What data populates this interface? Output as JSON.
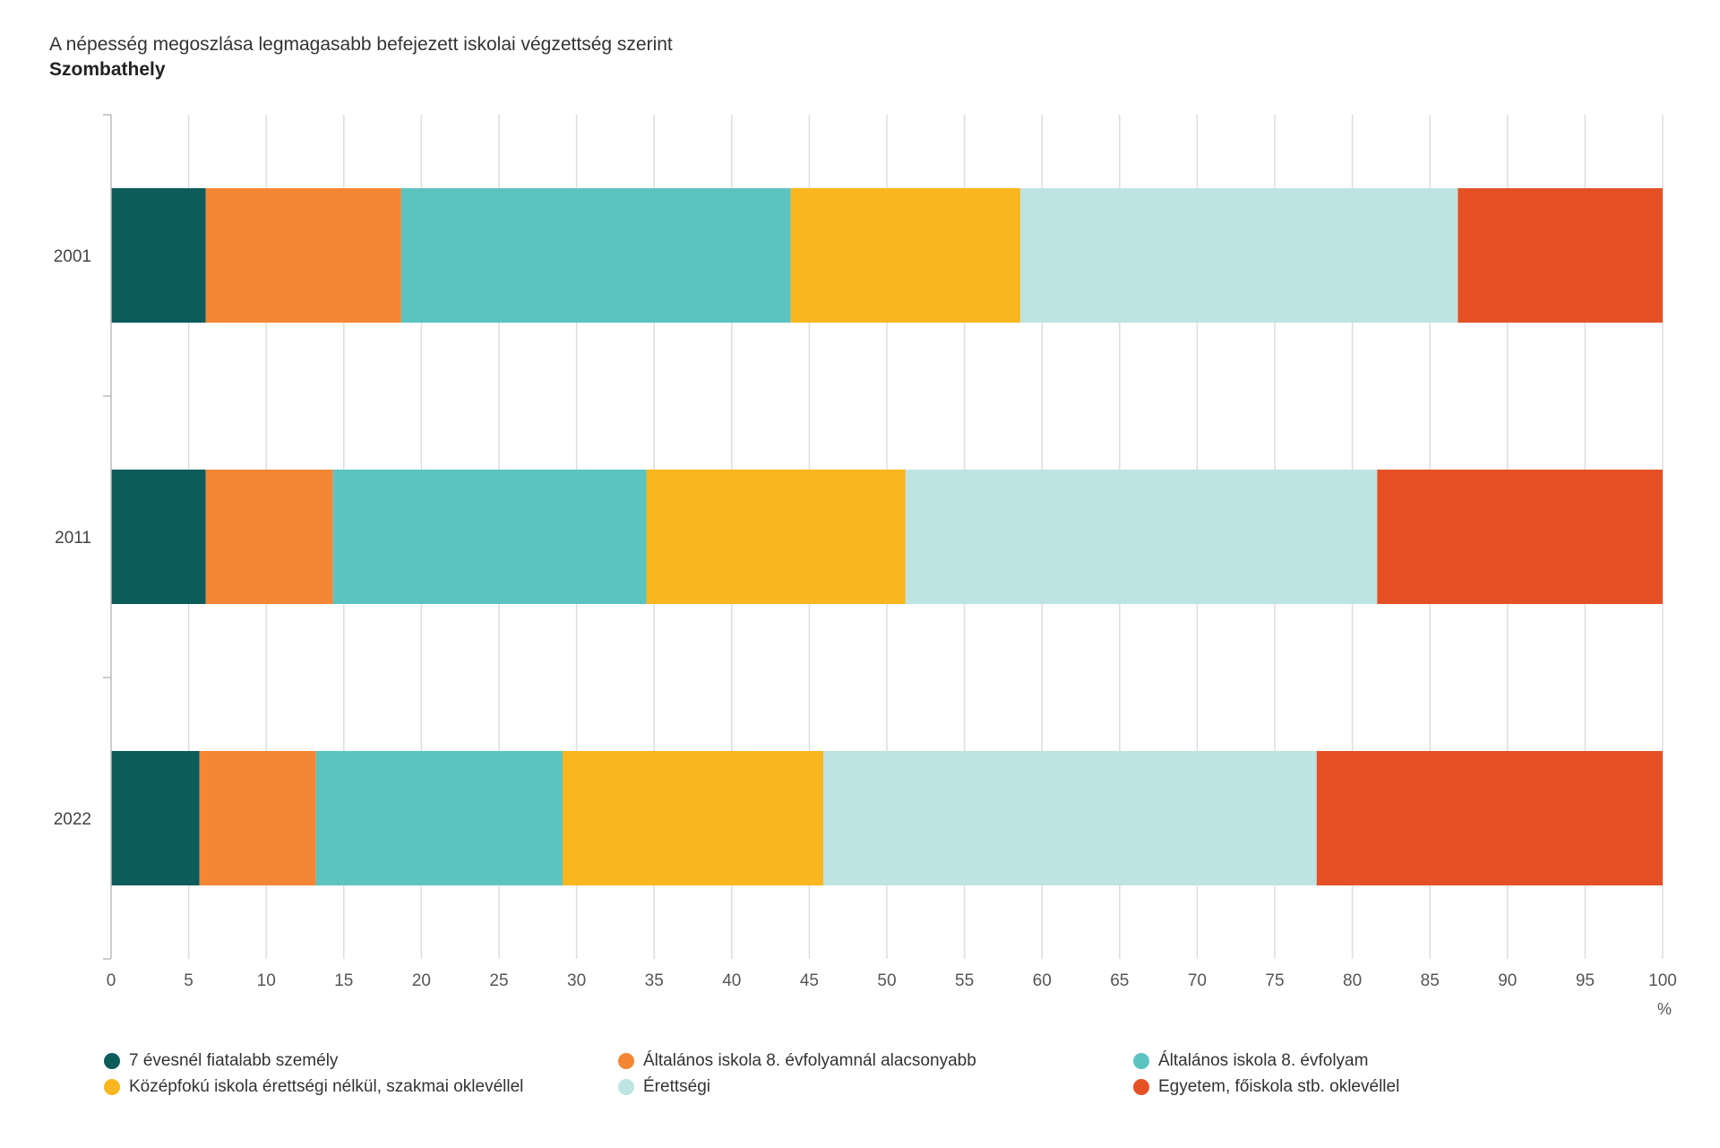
{
  "title": "A népesség megoszlása legmagasabb befejezett iskolai végzettség szerint",
  "subtitle": "Szombathely",
  "chart_data": {
    "type": "bar",
    "orientation": "horizontal",
    "stacked": true,
    "categories": [
      "2001",
      "2011",
      "2022"
    ],
    "series": [
      {
        "name": "7 évesnél fiatalabb személy",
        "color": "#0b5c5b",
        "values": [
          6.1,
          6.1,
          5.7
        ]
      },
      {
        "name": "Általános iskola 8. évfolyamnál alacsonyabb",
        "color": "#f58634",
        "values": [
          12.6,
          8.2,
          7.5
        ]
      },
      {
        "name": "Általános iskola 8. évfolyam",
        "color": "#5bc4c1",
        "values": [
          25.1,
          20.2,
          15.9
        ]
      },
      {
        "name": "Középfokú iskola érettségi nélkül, szakmai oklevéllel",
        "color": "#fab61e",
        "values": [
          14.8,
          16.7,
          16.8
        ]
      },
      {
        "name": "Érettségi",
        "color": "#bde4e2",
        "values": [
          28.2,
          30.4,
          31.8
        ]
      },
      {
        "name": "Egyetem, főiskola stb. oklevéllel",
        "color": "#e55125",
        "values": [
          13.2,
          18.4,
          22.3
        ]
      }
    ],
    "xlim": [
      0,
      100
    ],
    "xticks": [
      "0",
      "5",
      "10",
      "15",
      "20",
      "25",
      "30",
      "35",
      "40",
      "45",
      "50",
      "55",
      "60",
      "65",
      "70",
      "75",
      "80",
      "85",
      "90",
      "95",
      "100"
    ],
    "xunit": "%",
    "grid": true,
    "legend_position": "bottom"
  }
}
